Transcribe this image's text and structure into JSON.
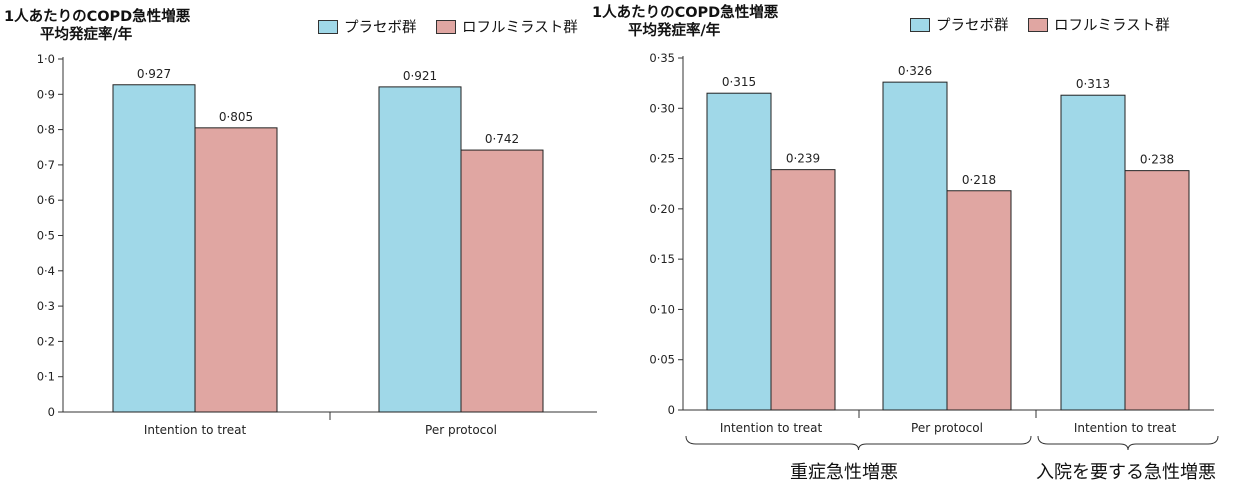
{
  "colors": {
    "placebo": "#a0d8e8",
    "roflumilast": "#e0a6a2",
    "outline": "#222222"
  },
  "legend": {
    "placebo": "プラセボ群",
    "roflumilast": "ロフルミラスト群"
  },
  "chart_data": [
    {
      "type": "bar",
      "ylabel_line1": "1人あたりのCOPD急性増悪",
      "ylabel_line2": "平均発症率/年",
      "categories": [
        "Intention to treat",
        "Per protocol"
      ],
      "series": [
        {
          "name": "プラセボ群",
          "values": [
            0.927,
            0.921
          ],
          "labels": [
            "0·927",
            "0·921"
          ]
        },
        {
          "name": "ロフルミラスト群",
          "values": [
            0.805,
            0.742
          ],
          "labels": [
            "0·805",
            "0·742"
          ]
        }
      ],
      "ylim": [
        0,
        1.0
      ],
      "yticks": [
        "0",
        "0·1",
        "0·2",
        "0·3",
        "0·4",
        "0·5",
        "0·6",
        "0·7",
        "0·8",
        "0·9",
        "1·0"
      ],
      "grid": false,
      "legend_position": "top"
    },
    {
      "type": "bar",
      "ylabel_line1": "1人あたりのCOPD急性増悪",
      "ylabel_line2": "平均発症率/年",
      "categories": [
        "Intention to treat",
        "Per protocol",
        "Intention to treat"
      ],
      "series": [
        {
          "name": "プラセボ群",
          "values": [
            0.315,
            0.326,
            0.313
          ],
          "labels": [
            "0·315",
            "0·326",
            "0·313"
          ]
        },
        {
          "name": "ロフルミラスト群",
          "values": [
            0.239,
            0.218,
            0.238
          ],
          "labels": [
            "0·239",
            "0·218",
            "0·238"
          ]
        }
      ],
      "ylim": [
        0,
        0.35
      ],
      "yticks": [
        "0",
        "0·05",
        "0·10",
        "0·15",
        "0·20",
        "0·25",
        "0·30",
        "0·35"
      ],
      "groups": [
        {
          "label": "重症急性増悪"
        },
        {
          "label": "入院を要する急性増悪"
        }
      ],
      "grid": false,
      "legend_position": "top"
    }
  ]
}
